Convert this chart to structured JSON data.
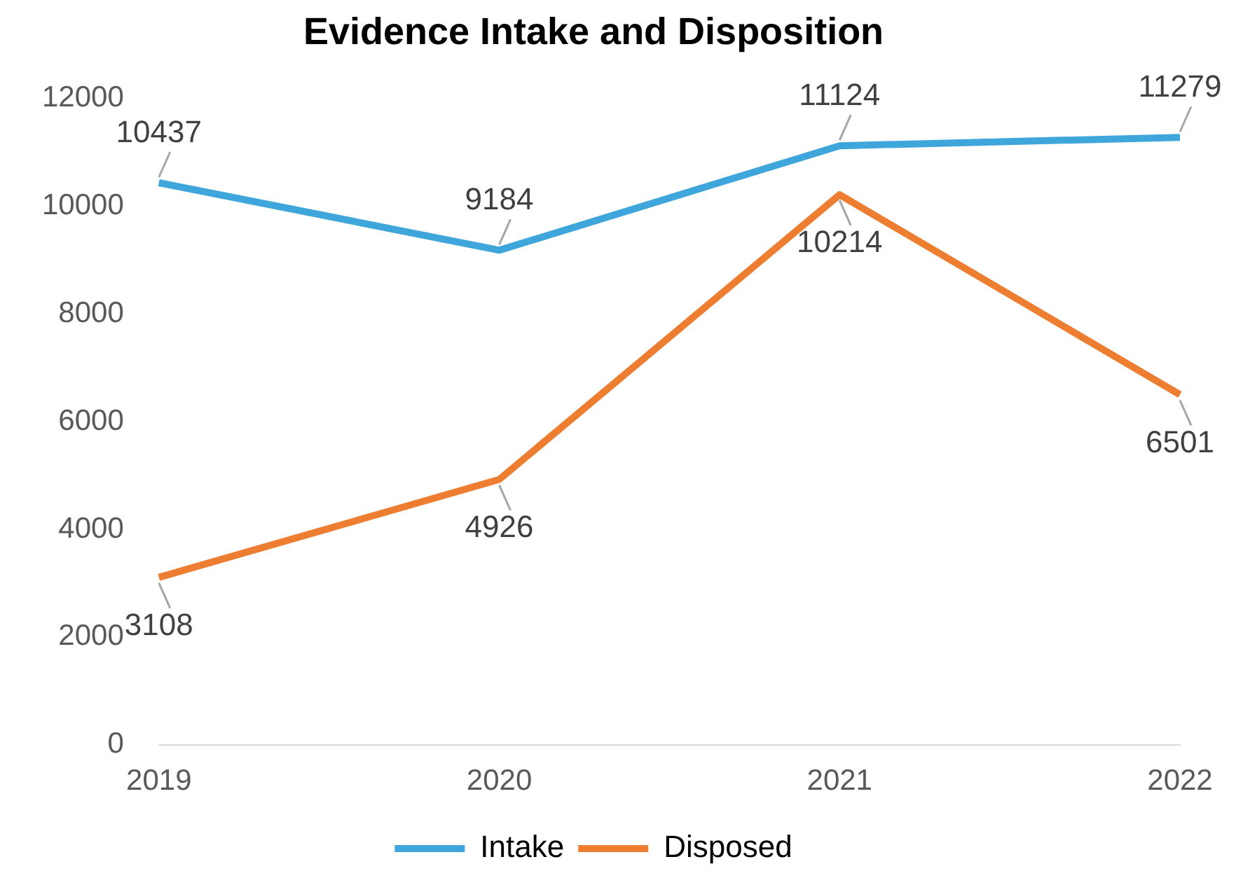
{
  "chart_data": {
    "type": "line",
    "title": "Evidence Intake and Disposition",
    "categories": [
      "2019",
      "2020",
      "2021",
      "2022"
    ],
    "series": [
      {
        "name": "Intake",
        "color": "#3fa6dc",
        "values": [
          10437,
          9184,
          11124,
          11279
        ]
      },
      {
        "name": "Disposed",
        "color": "#ed7d31",
        "values": [
          3108,
          4926,
          10214,
          6501
        ]
      }
    ],
    "ylim": [
      0,
      12000
    ],
    "yticks": [
      0,
      2000,
      4000,
      6000,
      8000,
      10000,
      12000
    ],
    "grid": false,
    "legend": "bottom",
    "marker": "none",
    "line_style": "solid",
    "data_labels": true
  }
}
